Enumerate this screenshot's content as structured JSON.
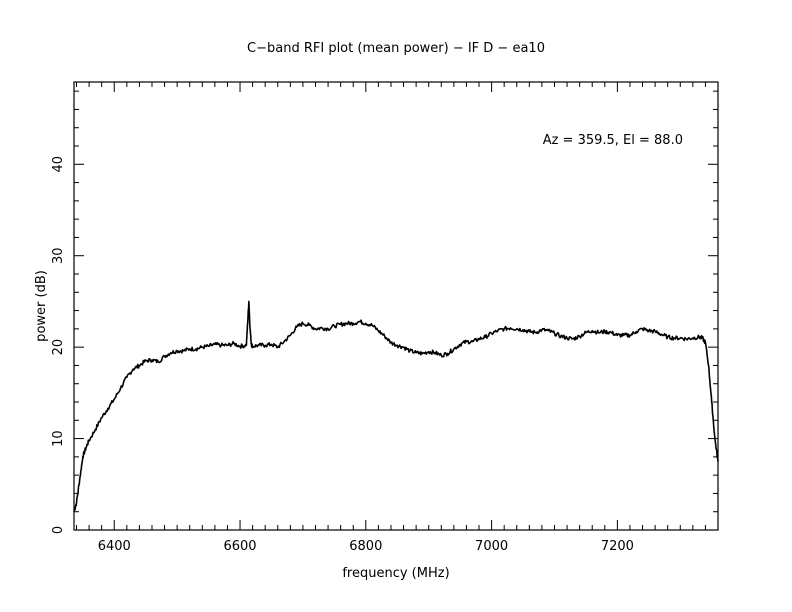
{
  "chart_data": {
    "type": "line",
    "title": "C−band RFI plot (mean power) − IF D − ea10",
    "xlabel": "frequency (MHz)",
    "ylabel": "power (dB)",
    "annotation": "Az = 359.5, El = 88.0",
    "xlim": [
      6336,
      7360
    ],
    "ylim": [
      0,
      49
    ],
    "xticks": [
      6400,
      6600,
      6800,
      7000,
      7200
    ],
    "yticks": [
      0,
      10,
      20,
      30,
      40
    ],
    "grid": false,
    "line_color": "#000000",
    "series": [
      {
        "x": [
          6336,
          6340,
          6345,
          6350,
          6355,
          6360,
          6370,
          6380,
          6390,
          6400,
          6410,
          6420,
          6430,
          6440,
          6450,
          6460,
          6470,
          6480,
          6490,
          6500,
          6510,
          6520,
          6530,
          6540,
          6550,
          6560,
          6570,
          6580,
          6590,
          6600,
          6610,
          6612,
          6614,
          6616,
          6618,
          6620,
          6630,
          6640,
          6650,
          6660,
          6670,
          6680,
          6690,
          6700,
          6710,
          6720,
          6730,
          6740,
          6750,
          6760,
          6770,
          6780,
          6790,
          6800,
          6810,
          6820,
          6830,
          6840,
          6850,
          6860,
          6870,
          6880,
          6890,
          6900,
          6910,
          6920,
          6930,
          6940,
          6950,
          6960,
          6970,
          6980,
          6990,
          7000,
          7010,
          7020,
          7030,
          7040,
          7050,
          7060,
          7070,
          7080,
          7090,
          7100,
          7110,
          7120,
          7130,
          7140,
          7150,
          7160,
          7170,
          7180,
          7190,
          7200,
          7210,
          7220,
          7230,
          7240,
          7250,
          7260,
          7270,
          7280,
          7290,
          7300,
          7310,
          7320,
          7330,
          7335,
          7340,
          7345,
          7350,
          7355,
          7360
        ],
        "values": [
          2.0,
          3.0,
          5.5,
          8.0,
          9.0,
          9.8,
          11.0,
          12.3,
          13.3,
          14.3,
          15.5,
          16.7,
          17.6,
          18.0,
          18.5,
          18.6,
          18.4,
          19.0,
          19.4,
          19.6,
          19.6,
          19.8,
          19.8,
          20.0,
          20.1,
          20.3,
          20.2,
          20.2,
          20.4,
          20.1,
          20.2,
          22.5,
          25.0,
          22.0,
          20.3,
          20.1,
          20.2,
          20.2,
          20.3,
          20.0,
          20.6,
          21.3,
          22.2,
          22.6,
          22.4,
          22.0,
          22.1,
          22.0,
          22.3,
          22.5,
          22.6,
          22.6,
          22.8,
          22.6,
          22.4,
          21.8,
          21.2,
          20.5,
          20.2,
          20.0,
          19.6,
          19.4,
          19.3,
          19.5,
          19.4,
          19.1,
          19.3,
          19.8,
          20.3,
          20.6,
          20.6,
          20.9,
          21.1,
          21.5,
          21.8,
          22.0,
          22.1,
          22.0,
          21.9,
          21.7,
          21.6,
          21.9,
          21.8,
          21.5,
          21.2,
          21.0,
          20.9,
          21.2,
          21.6,
          21.8,
          21.6,
          21.7,
          21.6,
          21.3,
          21.3,
          21.3,
          21.7,
          22.0,
          21.8,
          21.7,
          21.4,
          21.1,
          21.0,
          21.0,
          20.9,
          21.0,
          21.1,
          21.0,
          20.5,
          18.0,
          14.0,
          10.0,
          7.5
        ]
      }
    ]
  }
}
